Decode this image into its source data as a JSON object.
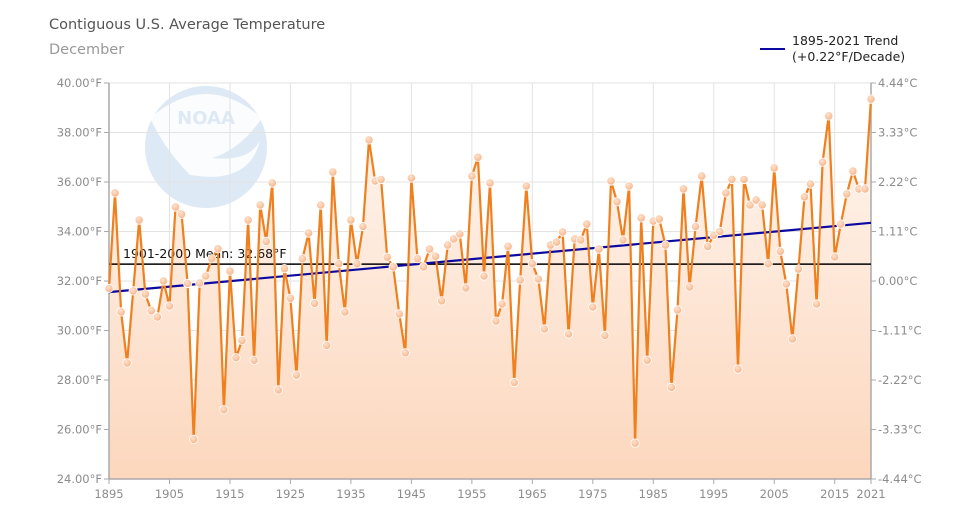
{
  "chart_data": {
    "type": "line",
    "title": "Contiguous U.S. Average Temperature",
    "subtitle": "December",
    "xlabel": "",
    "ylabel": "",
    "xlim": [
      1895,
      2021
    ],
    "ylim": [
      24,
      40
    ],
    "y2lim": [
      -4.44,
      4.44
    ],
    "grid": true,
    "legend_position": "top-right",
    "x_ticks": [
      "1895",
      "1905",
      "1915",
      "1925",
      "1935",
      "1945",
      "1955",
      "1965",
      "1975",
      "1985",
      "1995",
      "2005",
      "2015",
      "2021"
    ],
    "x_tick_values": [
      1895,
      1905,
      1915,
      1925,
      1935,
      1945,
      1955,
      1965,
      1975,
      1985,
      1995,
      2005,
      2015,
      2021
    ],
    "y_ticks": [
      "40.00°F",
      "38.00°F",
      "36.00°F",
      "34.00°F",
      "32.00°F",
      "30.00°F",
      "28.00°F",
      "26.00°F",
      "24.00°F"
    ],
    "y_tick_values": [
      40,
      38,
      36,
      34,
      32,
      30,
      28,
      26,
      24
    ],
    "y2_ticks": [
      "4.44°C",
      "3.33°C",
      "2.22°C",
      "1.11°C",
      "0.00°C",
      "-1.11°C",
      "-2.22°C",
      "-3.33°C",
      "-4.44°C"
    ],
    "mean": {
      "label": "1901-2000 Mean: 32.68°F",
      "value": 32.68
    },
    "trend": {
      "legend_line1": "1895-2021 Trend",
      "legend_line2": "(+0.22°F/Decade)",
      "start": [
        1895,
        31.55
      ],
      "end": [
        2021,
        34.35
      ]
    },
    "series": [
      {
        "name": "December Average Temperature",
        "start_year": 1895,
        "values": [
          31.7,
          35.56,
          30.75,
          28.69,
          31.6,
          34.46,
          31.47,
          30.8,
          30.55,
          32.0,
          30.99,
          34.99,
          34.7,
          31.9,
          25.6,
          31.92,
          32.2,
          32.9,
          33.3,
          26.8,
          32.4,
          28.9,
          29.6,
          34.46,
          28.8,
          35.07,
          33.6,
          35.96,
          27.6,
          32.5,
          31.3,
          28.2,
          32.9,
          33.94,
          31.1,
          35.07,
          29.4,
          36.4,
          32.7,
          30.75,
          34.46,
          32.7,
          34.2,
          37.7,
          36.04,
          36.1,
          32.96,
          32.57,
          30.67,
          29.1,
          36.16,
          32.9,
          32.57,
          33.29,
          33.0,
          31.2,
          33.45,
          33.7,
          33.9,
          31.72,
          36.24,
          37.0,
          32.2,
          35.96,
          30.38,
          31.07,
          33.4,
          27.9,
          32.04,
          35.84,
          32.7,
          32.08,
          30.06,
          33.45,
          33.57,
          33.98,
          29.86,
          33.7,
          33.66,
          34.3,
          30.95,
          33.29,
          29.8,
          36.04,
          35.2,
          33.66,
          35.84,
          25.45,
          34.55,
          28.8,
          34.42,
          34.5,
          33.45,
          27.7,
          30.83,
          35.72,
          31.76,
          34.2,
          36.24,
          33.4,
          33.85,
          34.0,
          35.56,
          36.1,
          28.44,
          36.1,
          35.07,
          35.27,
          35.07,
          32.7,
          36.57,
          33.2,
          31.88,
          29.66,
          32.48,
          35.4,
          35.92,
          31.07,
          36.8,
          38.67,
          32.97,
          34.3,
          35.52,
          36.44,
          35.72,
          35.72,
          39.35
        ]
      }
    ],
    "colors": {
      "line": "#f07f1e",
      "marker": "#f7b489",
      "area_top": "#fff6f0",
      "area_bottom": "#fcd7bd",
      "trend": "#0a0aa0",
      "mean": "#000000",
      "grid": "#e3e3e3",
      "axis": "#aaaaaa",
      "logo": "#dde9f4"
    },
    "logo_text": "NOAA"
  }
}
